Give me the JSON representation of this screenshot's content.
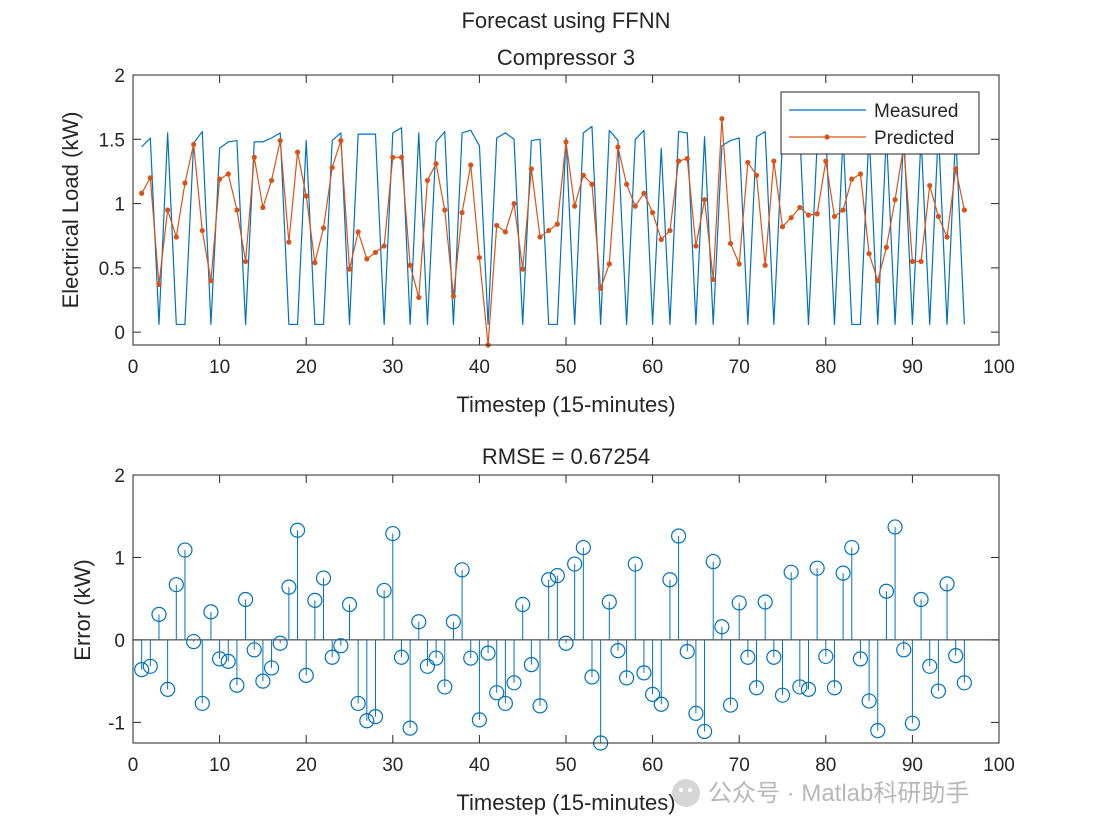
{
  "chart_data": [
    {
      "type": "line",
      "title": "Forecast using FFNN",
      "subtitle": "Compressor 3",
      "xlabel": "Timestep (15-minutes)",
      "ylabel": "Electrical Load (kW)",
      "xlim": [
        0,
        100
      ],
      "ylim": [
        -0.1,
        2
      ],
      "xticks": [
        0,
        10,
        20,
        30,
        40,
        50,
        60,
        70,
        80,
        90,
        100
      ],
      "yticks": [
        0,
        0.5,
        1,
        1.5,
        2
      ],
      "ytick_labels": [
        "0",
        "0.5",
        "1",
        "1.5",
        "2"
      ],
      "legend_position": "top-right",
      "series": [
        {
          "name": "Measured",
          "color": "#0072BD",
          "marker": "none",
          "x": [
            1,
            2,
            3,
            4,
            5,
            6,
            7,
            8,
            9,
            10,
            11,
            12,
            13,
            14,
            15,
            16,
            17,
            18,
            19,
            20,
            21,
            22,
            23,
            24,
            25,
            26,
            27,
            28,
            29,
            30,
            31,
            32,
            33,
            34,
            35,
            36,
            37,
            38,
            39,
            40,
            41,
            42,
            43,
            44,
            45,
            46,
            47,
            48,
            49,
            50,
            51,
            52,
            53,
            54,
            55,
            56,
            57,
            58,
            59,
            60,
            61,
            62,
            63,
            64,
            65,
            66,
            67,
            68,
            69,
            70,
            71,
            72,
            73,
            74,
            75,
            76,
            77,
            78,
            79,
            80,
            81,
            82,
            83,
            84,
            85,
            86,
            87,
            88,
            89,
            90,
            91,
            92,
            93,
            94,
            95,
            96
          ],
          "values": [
            1.44,
            1.51,
            0.06,
            1.55,
            0.06,
            0.06,
            1.47,
            1.56,
            0.06,
            1.43,
            1.48,
            1.49,
            0.06,
            1.48,
            1.48,
            1.51,
            1.55,
            0.06,
            0.06,
            1.49,
            0.06,
            0.06,
            1.49,
            1.55,
            0.06,
            1.54,
            1.54,
            1.54,
            0.06,
            1.55,
            1.59,
            0.06,
            1.55,
            0.06,
            1.48,
            1.56,
            0.06,
            1.55,
            1.57,
            1.45,
            0.06,
            1.51,
            1.55,
            1.5,
            0.06,
            1.49,
            1.5,
            0.06,
            0.06,
            1.51,
            0.06,
            1.55,
            1.6,
            0.06,
            1.57,
            1.49,
            0.06,
            1.5,
            1.57,
            0.06,
            1.43,
            0.06,
            1.56,
            1.55,
            0.06,
            1.52,
            0.06,
            1.45,
            1.49,
            1.51,
            0.06,
            1.52,
            1.56,
            0.06,
            1.5,
            1.54,
            1.55,
            0.06,
            1.46,
            1.55,
            0.06,
            1.53,
            0.06,
            0.06,
            1.56,
            0.06,
            1.54,
            0.06,
            1.55,
            0.06,
            1.52,
            0.06,
            1.58,
            0.06,
            1.55,
            0.06
          ]
        },
        {
          "name": "Predicted",
          "color": "#D95319",
          "marker": "dot",
          "x": [
            1,
            2,
            3,
            4,
            5,
            6,
            7,
            8,
            9,
            10,
            11,
            12,
            13,
            14,
            15,
            16,
            17,
            18,
            19,
            20,
            21,
            22,
            23,
            24,
            25,
            26,
            27,
            28,
            29,
            30,
            31,
            32,
            33,
            34,
            35,
            36,
            37,
            38,
            39,
            40,
            41,
            42,
            43,
            44,
            45,
            46,
            47,
            48,
            49,
            50,
            51,
            52,
            53,
            54,
            55,
            56,
            57,
            58,
            59,
            60,
            61,
            62,
            63,
            64,
            65,
            66,
            67,
            68,
            69,
            70,
            71,
            72,
            73,
            74,
            75,
            76,
            77,
            78,
            79,
            80,
            81,
            82,
            83,
            84,
            85,
            86,
            87,
            88,
            89,
            90,
            91,
            92,
            93,
            94,
            95,
            96
          ],
          "values": [
            1.08,
            1.2,
            0.37,
            0.95,
            0.74,
            1.16,
            1.46,
            0.79,
            0.4,
            1.19,
            1.23,
            0.95,
            0.55,
            1.36,
            0.97,
            1.18,
            1.49,
            0.7,
            1.4,
            1.06,
            0.54,
            0.81,
            1.28,
            1.49,
            0.49,
            0.78,
            0.57,
            0.62,
            0.67,
            1.36,
            1.36,
            0.52,
            0.27,
            1.18,
            1.31,
            0.95,
            0.28,
            0.93,
            1.3,
            0.58,
            -0.1,
            0.83,
            0.78,
            1.0,
            0.49,
            1.27,
            0.74,
            0.79,
            0.84,
            1.48,
            0.98,
            1.22,
            1.15,
            0.34,
            0.53,
            1.44,
            1.15,
            0.98,
            1.08,
            0.93,
            0.72,
            0.79,
            1.33,
            1.35,
            0.67,
            1.03,
            0.41,
            1.66,
            0.69,
            0.53,
            1.32,
            1.22,
            0.52,
            1.33,
            0.82,
            0.89,
            0.97,
            0.91,
            0.92,
            1.33,
            0.9,
            0.95,
            1.19,
            1.23,
            0.61,
            0.4,
            0.66,
            1.03,
            1.45,
            0.55,
            0.55,
            1.14,
            0.9,
            0.74,
            1.27,
            0.95
          ]
        }
      ]
    },
    {
      "type": "stem",
      "title": "RMSE = 0.67254",
      "xlabel": "Timestep (15-minutes)",
      "ylabel": "Error (kW)",
      "xlim": [
        0,
        100
      ],
      "ylim": [
        -1.25,
        2
      ],
      "xticks": [
        0,
        10,
        20,
        30,
        40,
        50,
        60,
        70,
        80,
        90,
        100
      ],
      "yticks": [
        -1,
        0,
        1,
        2
      ],
      "ytick_labels": [
        "-1",
        "0",
        "1",
        "2"
      ],
      "series": [
        {
          "name": "Error",
          "color": "#0072BD",
          "marker": "circle",
          "x": [
            1,
            2,
            3,
            4,
            5,
            6,
            7,
            8,
            9,
            10,
            11,
            12,
            13,
            14,
            15,
            16,
            17,
            18,
            19,
            20,
            21,
            22,
            23,
            24,
            25,
            26,
            27,
            28,
            29,
            30,
            31,
            32,
            33,
            34,
            35,
            36,
            37,
            38,
            39,
            40,
            41,
            42,
            43,
            44,
            45,
            46,
            47,
            48,
            49,
            50,
            51,
            52,
            53,
            54,
            55,
            56,
            57,
            58,
            59,
            60,
            61,
            62,
            63,
            64,
            65,
            66,
            67,
            68,
            69,
            70,
            71,
            72,
            73,
            74,
            75,
            76,
            77,
            78,
            79,
            80,
            81,
            82,
            83,
            84,
            85,
            86,
            87,
            88,
            89,
            90,
            91,
            92,
            93,
            94,
            95,
            96
          ],
          "values": [
            -0.36,
            -0.32,
            0.31,
            -0.6,
            0.67,
            1.09,
            -0.02,
            -0.77,
            0.34,
            -0.23,
            -0.26,
            -0.55,
            0.49,
            -0.12,
            -0.5,
            -0.34,
            -0.04,
            0.64,
            1.33,
            -0.43,
            0.48,
            0.75,
            -0.21,
            -0.07,
            0.43,
            -0.77,
            -0.98,
            -0.93,
            0.6,
            1.29,
            -0.21,
            -1.07,
            0.22,
            -0.32,
            -0.22,
            -0.57,
            0.22,
            0.85,
            -0.22,
            -0.97,
            -0.16,
            -0.64,
            -0.77,
            -0.52,
            0.43,
            -0.3,
            -0.8,
            0.73,
            0.78,
            -0.04,
            0.92,
            1.12,
            -0.45,
            -1.25,
            0.46,
            -0.13,
            -0.46,
            0.92,
            -0.4,
            -0.66,
            -0.78,
            0.73,
            1.26,
            -0.14,
            -0.89,
            -1.11,
            0.95,
            0.16,
            -0.79,
            0.45,
            -0.21,
            -0.58,
            0.46,
            -0.21,
            -0.67,
            0.82,
            -0.57,
            -0.6,
            0.87,
            -0.2,
            -0.58,
            0.81,
            1.12,
            -0.23,
            -0.74,
            -1.1,
            0.59,
            1.37,
            -0.12,
            -1.01,
            0.49,
            -0.32,
            -0.62,
            0.68,
            -0.19,
            -0.52
          ]
        }
      ]
    }
  ],
  "watermark": "公众号 · Matlab科研助手"
}
